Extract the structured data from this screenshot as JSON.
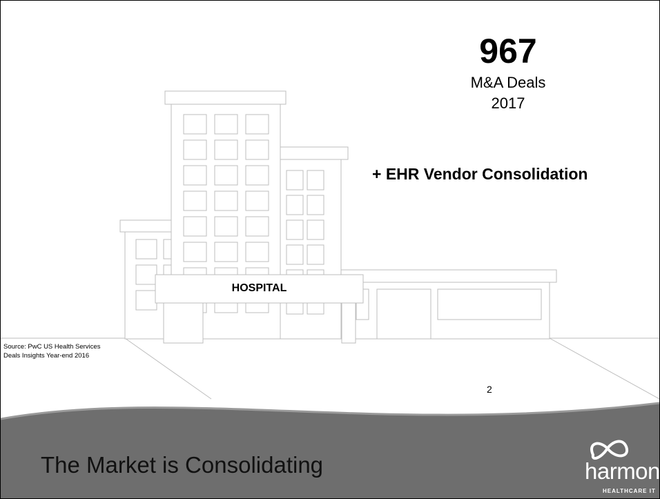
{
  "stat": {
    "number": "967",
    "label": "M&A Deals",
    "year": "2017"
  },
  "headline": "+ EHR Vendor Consolidation",
  "sign": "HOSPITAL",
  "source": [
    "Source:  PwC US Health Services",
    "Deals Insights Year-end 2016"
  ],
  "page_number": "2",
  "title": "The Market is Consolidating",
  "logo": {
    "name": "harmony",
    "tagline": "HEALTHCARE IT"
  }
}
